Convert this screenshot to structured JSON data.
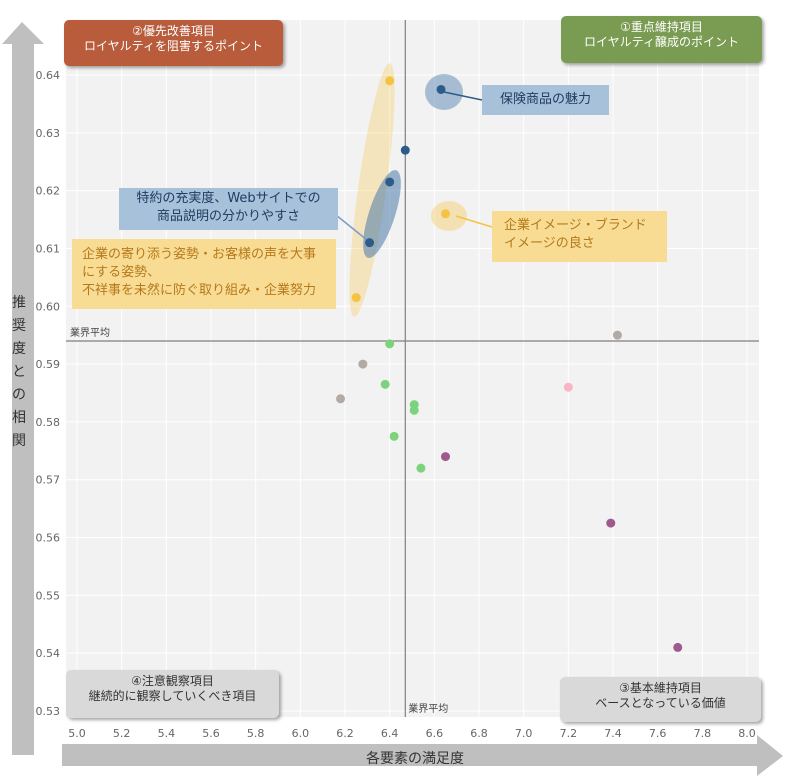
{
  "chart_data": {
    "type": "scatter",
    "xlabel": "各要素の満足度",
    "ylabel": "推奨度との相関",
    "xlim": [
      5.0,
      8.0
    ],
    "ylim": [
      0.53,
      0.64
    ],
    "xticks": [
      "5.0",
      "5.2",
      "5.4",
      "5.6",
      "5.8",
      "6.0",
      "6.2",
      "6.4",
      "6.6",
      "6.8",
      "7.0",
      "7.2",
      "7.4",
      "7.6",
      "7.8",
      "8.0"
    ],
    "yticks": [
      "0.53",
      "0.54",
      "0.55",
      "0.56",
      "0.57",
      "0.58",
      "0.59",
      "0.60",
      "0.61",
      "0.62",
      "0.63",
      "0.64"
    ],
    "grid": true,
    "average": {
      "x": 6.47,
      "y": 0.594,
      "x_label": "業界平均",
      "y_label": "業界平均"
    },
    "points": [
      {
        "x": 6.63,
        "y": 0.6375,
        "color": "#2e5c8a"
      },
      {
        "x": 6.47,
        "y": 0.627,
        "color": "#2e5c8a"
      },
      {
        "x": 6.4,
        "y": 0.6215,
        "color": "#2e5c8a"
      },
      {
        "x": 6.31,
        "y": 0.611,
        "color": "#2e5c8a"
      },
      {
        "x": 6.4,
        "y": 0.639,
        "color": "#f5c242"
      },
      {
        "x": 6.65,
        "y": 0.616,
        "color": "#f5c242"
      },
      {
        "x": 6.25,
        "y": 0.6015,
        "color": "#f5c242"
      },
      {
        "x": 7.42,
        "y": 0.595,
        "color": "#b3aaa5"
      },
      {
        "x": 6.28,
        "y": 0.59,
        "color": "#b3aaa5"
      },
      {
        "x": 6.18,
        "y": 0.584,
        "color": "#b3aaa5"
      },
      {
        "x": 6.4,
        "y": 0.5935,
        "color": "#7dd37d"
      },
      {
        "x": 6.38,
        "y": 0.5865,
        "color": "#7dd37d"
      },
      {
        "x": 6.51,
        "y": 0.583,
        "color": "#7dd37d"
      },
      {
        "x": 6.51,
        "y": 0.582,
        "color": "#7dd37d"
      },
      {
        "x": 6.42,
        "y": 0.5775,
        "color": "#7dd37d"
      },
      {
        "x": 6.54,
        "y": 0.572,
        "color": "#7dd37d"
      },
      {
        "x": 7.2,
        "y": 0.586,
        "color": "#f9b5c6"
      },
      {
        "x": 6.65,
        "y": 0.574,
        "color": "#9e5a8e"
      },
      {
        "x": 7.39,
        "y": 0.5625,
        "color": "#9e5a8e"
      },
      {
        "x": 7.69,
        "y": 0.541,
        "color": "#9e5a8e"
      }
    ]
  },
  "quadrants": {
    "q2_title": "②優先改善項目",
    "q2_sub": "ロイヤルティを阻害するポイント",
    "q1_title": "①重点維持項目",
    "q1_sub": "ロイヤルティ醸成のポイント",
    "q4_title": "④注意観察項目",
    "q4_sub": "継続的に観察していくべき項目",
    "q3_title": "③基本維持項目",
    "q3_sub": "ベースとなっている価値"
  },
  "callouts": {
    "insurance": "保険商品の魅力",
    "website_1": "特約の充実度、Webサイトでの",
    "website_2": "商品説明の分かりやすさ",
    "brand_1": "企業イメージ・ブランド",
    "brand_2": "イメージの良さ",
    "effort_1": "企業の寄り添う姿勢・お客様の声を大事",
    "effort_2": "にする姿勢、",
    "effort_3": "不祥事を未然に防ぐ取り組み・企業努力"
  },
  "colors": {
    "blue_highlight": "#5b88b5",
    "yellow_highlight": "#f5c242",
    "axis_arrow": "#bfbfbf"
  }
}
